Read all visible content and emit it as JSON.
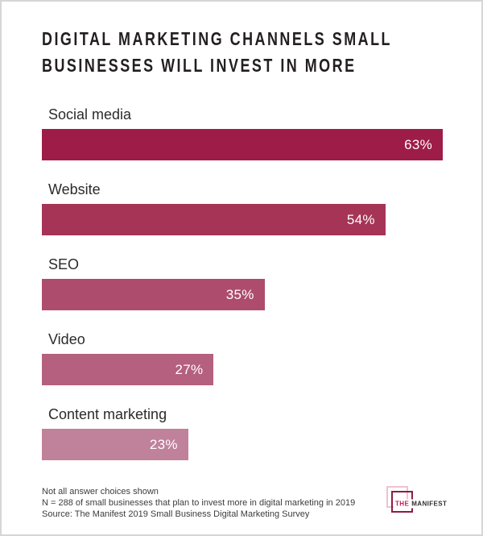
{
  "page": {
    "background": "#ffffff",
    "border_color": "#d6d6d6"
  },
  "title": {
    "line1": "DIGITAL MARKETING CHANNELS SMALL",
    "line2": "BUSINESSES WILL INVEST IN MORE",
    "color": "#231f20"
  },
  "chart_data": {
    "type": "bar",
    "orientation": "horizontal",
    "title": "Digital Marketing Channels Small Businesses Will Invest In More",
    "categories": [
      "Social media",
      "Website",
      "SEO",
      "Video",
      "Content marketing"
    ],
    "values": [
      63,
      54,
      35,
      27,
      23
    ],
    "value_labels": [
      "63%",
      "54%",
      "35%",
      "27%",
      "23%"
    ],
    "bar_colors": [
      "#9E1C48",
      "#A63457",
      "#AD4C6D",
      "#B5607E",
      "#C0819A"
    ],
    "value_text_color": "#ffffff",
    "unit": "%",
    "xlim": [
      0,
      63
    ],
    "grid": false,
    "legend": false,
    "value_label_position": "inside-right"
  },
  "footer": {
    "notes": [
      "Not all answer choices shown",
      "N = 288 of small businesses that plan to invest more in digital marketing in 2019",
      "Source: The Manifest 2019 Small Business Digital Marketing Survey"
    ]
  },
  "logo": {
    "prefix": "THE",
    "name": "MANIFEST",
    "prefix_color": "#C41A52",
    "name_color": "#2d2d2d",
    "back_square_color": "#EFC3CF",
    "front_square_color": "#8F1C45"
  }
}
